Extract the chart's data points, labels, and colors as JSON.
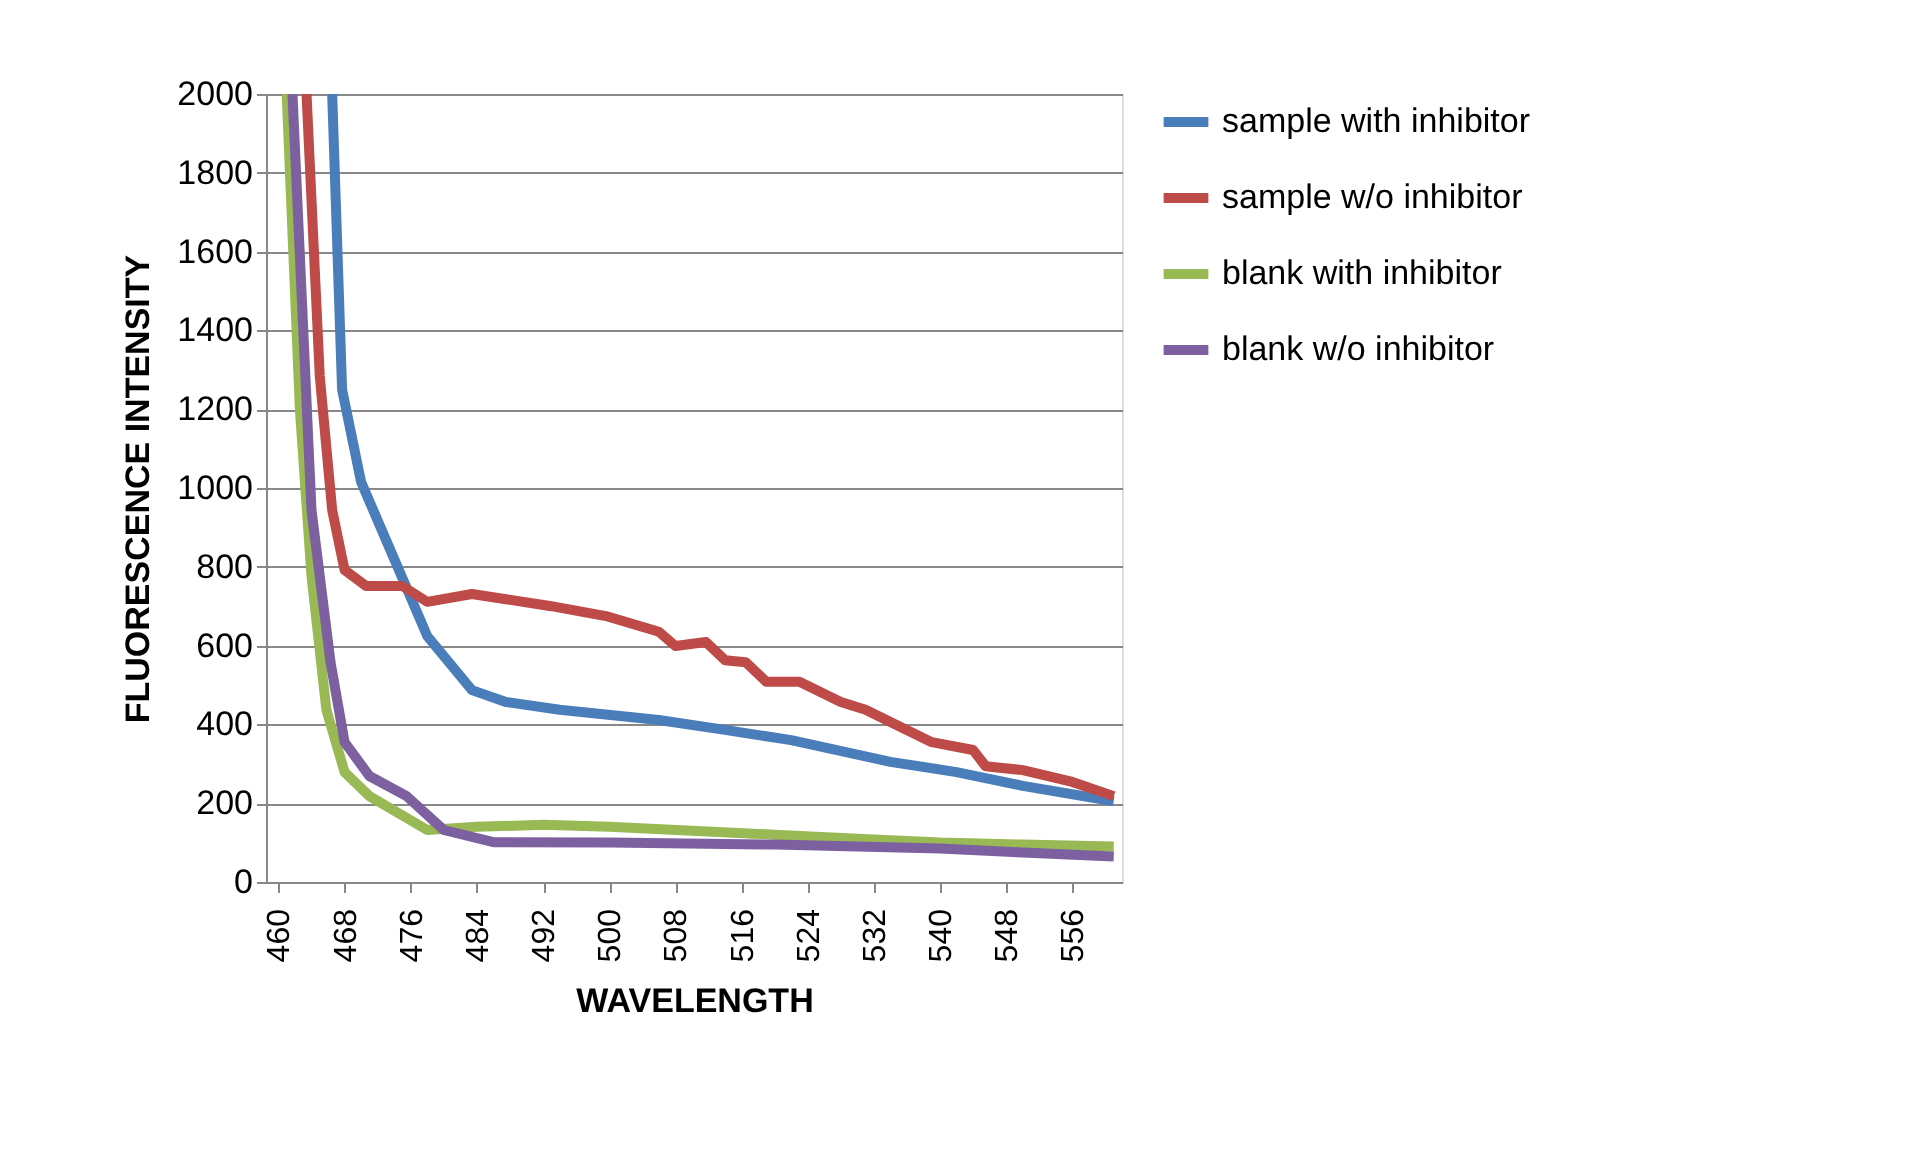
{
  "chart_data": {
    "type": "line",
    "xlabel": "WAVELENGTH",
    "ylabel": "FLUORESCENCE INTENSITY",
    "xlim": [
      458.5,
      562
    ],
    "xticks": [
      460,
      468,
      476,
      484,
      492,
      500,
      508,
      516,
      524,
      532,
      540,
      548,
      556
    ],
    "ylim": [
      0,
      2000
    ],
    "yticks": [
      0,
      200,
      400,
      600,
      800,
      1000,
      1200,
      1400,
      1600,
      1800,
      2000
    ],
    "grid": "y",
    "legend": "right",
    "marker": "none",
    "line_style": "solid",
    "series": [
      {
        "name": "sample with inhibitor",
        "color": "#4a7ebb",
        "x": [
          466.5,
          467.7,
          470,
          474,
          478,
          483.4,
          487.5,
          494,
          506,
          514,
          522,
          534,
          542,
          550,
          561
        ],
        "values": [
          2000,
          1250,
          1015,
          820,
          624,
          487,
          457,
          437,
          411,
          386,
          360,
          305,
          279,
          244,
          205
        ]
      },
      {
        "name": "sample w/o inhibitor",
        "color": "#be4b48",
        "x": [
          463.4,
          465,
          466.5,
          468,
          470.6,
          475,
          478,
          483.4,
          493,
          499.6,
          506,
          508,
          511.7,
          514,
          516.5,
          519,
          523,
          528,
          531,
          534,
          539,
          544,
          545.5,
          550,
          556,
          561
        ],
        "values": [
          2000,
          1284,
          944,
          792,
          751,
          751,
          711,
          731,
          700,
          675,
          635,
          599,
          609,
          563,
          558,
          508,
          508,
          457,
          437,
          406,
          355,
          335,
          294,
          284,
          254,
          218
        ]
      },
      {
        "name": "blank with inhibitor",
        "color": "#98b954",
        "x": [
          461,
          462.6,
          464,
          465.8,
          468,
          471,
          478,
          484,
          492,
          500,
          510,
          520,
          530,
          540,
          550,
          561
        ],
        "values": [
          2000,
          1198,
          777,
          437,
          279,
          218,
          132,
          140,
          145,
          140,
          130,
          120,
          110,
          100,
          95,
          90
        ]
      },
      {
        "name": "blank w/o inhibitor",
        "color": "#7d60a0",
        "x": [
          461.7,
          464,
          466.3,
          468,
          471,
          475.5,
          480,
          486,
          500,
          520,
          540,
          550,
          561
        ],
        "values": [
          2000,
          944,
          558,
          355,
          269,
          218,
          132,
          101,
          100,
          95,
          85,
          75,
          65
        ]
      }
    ]
  }
}
